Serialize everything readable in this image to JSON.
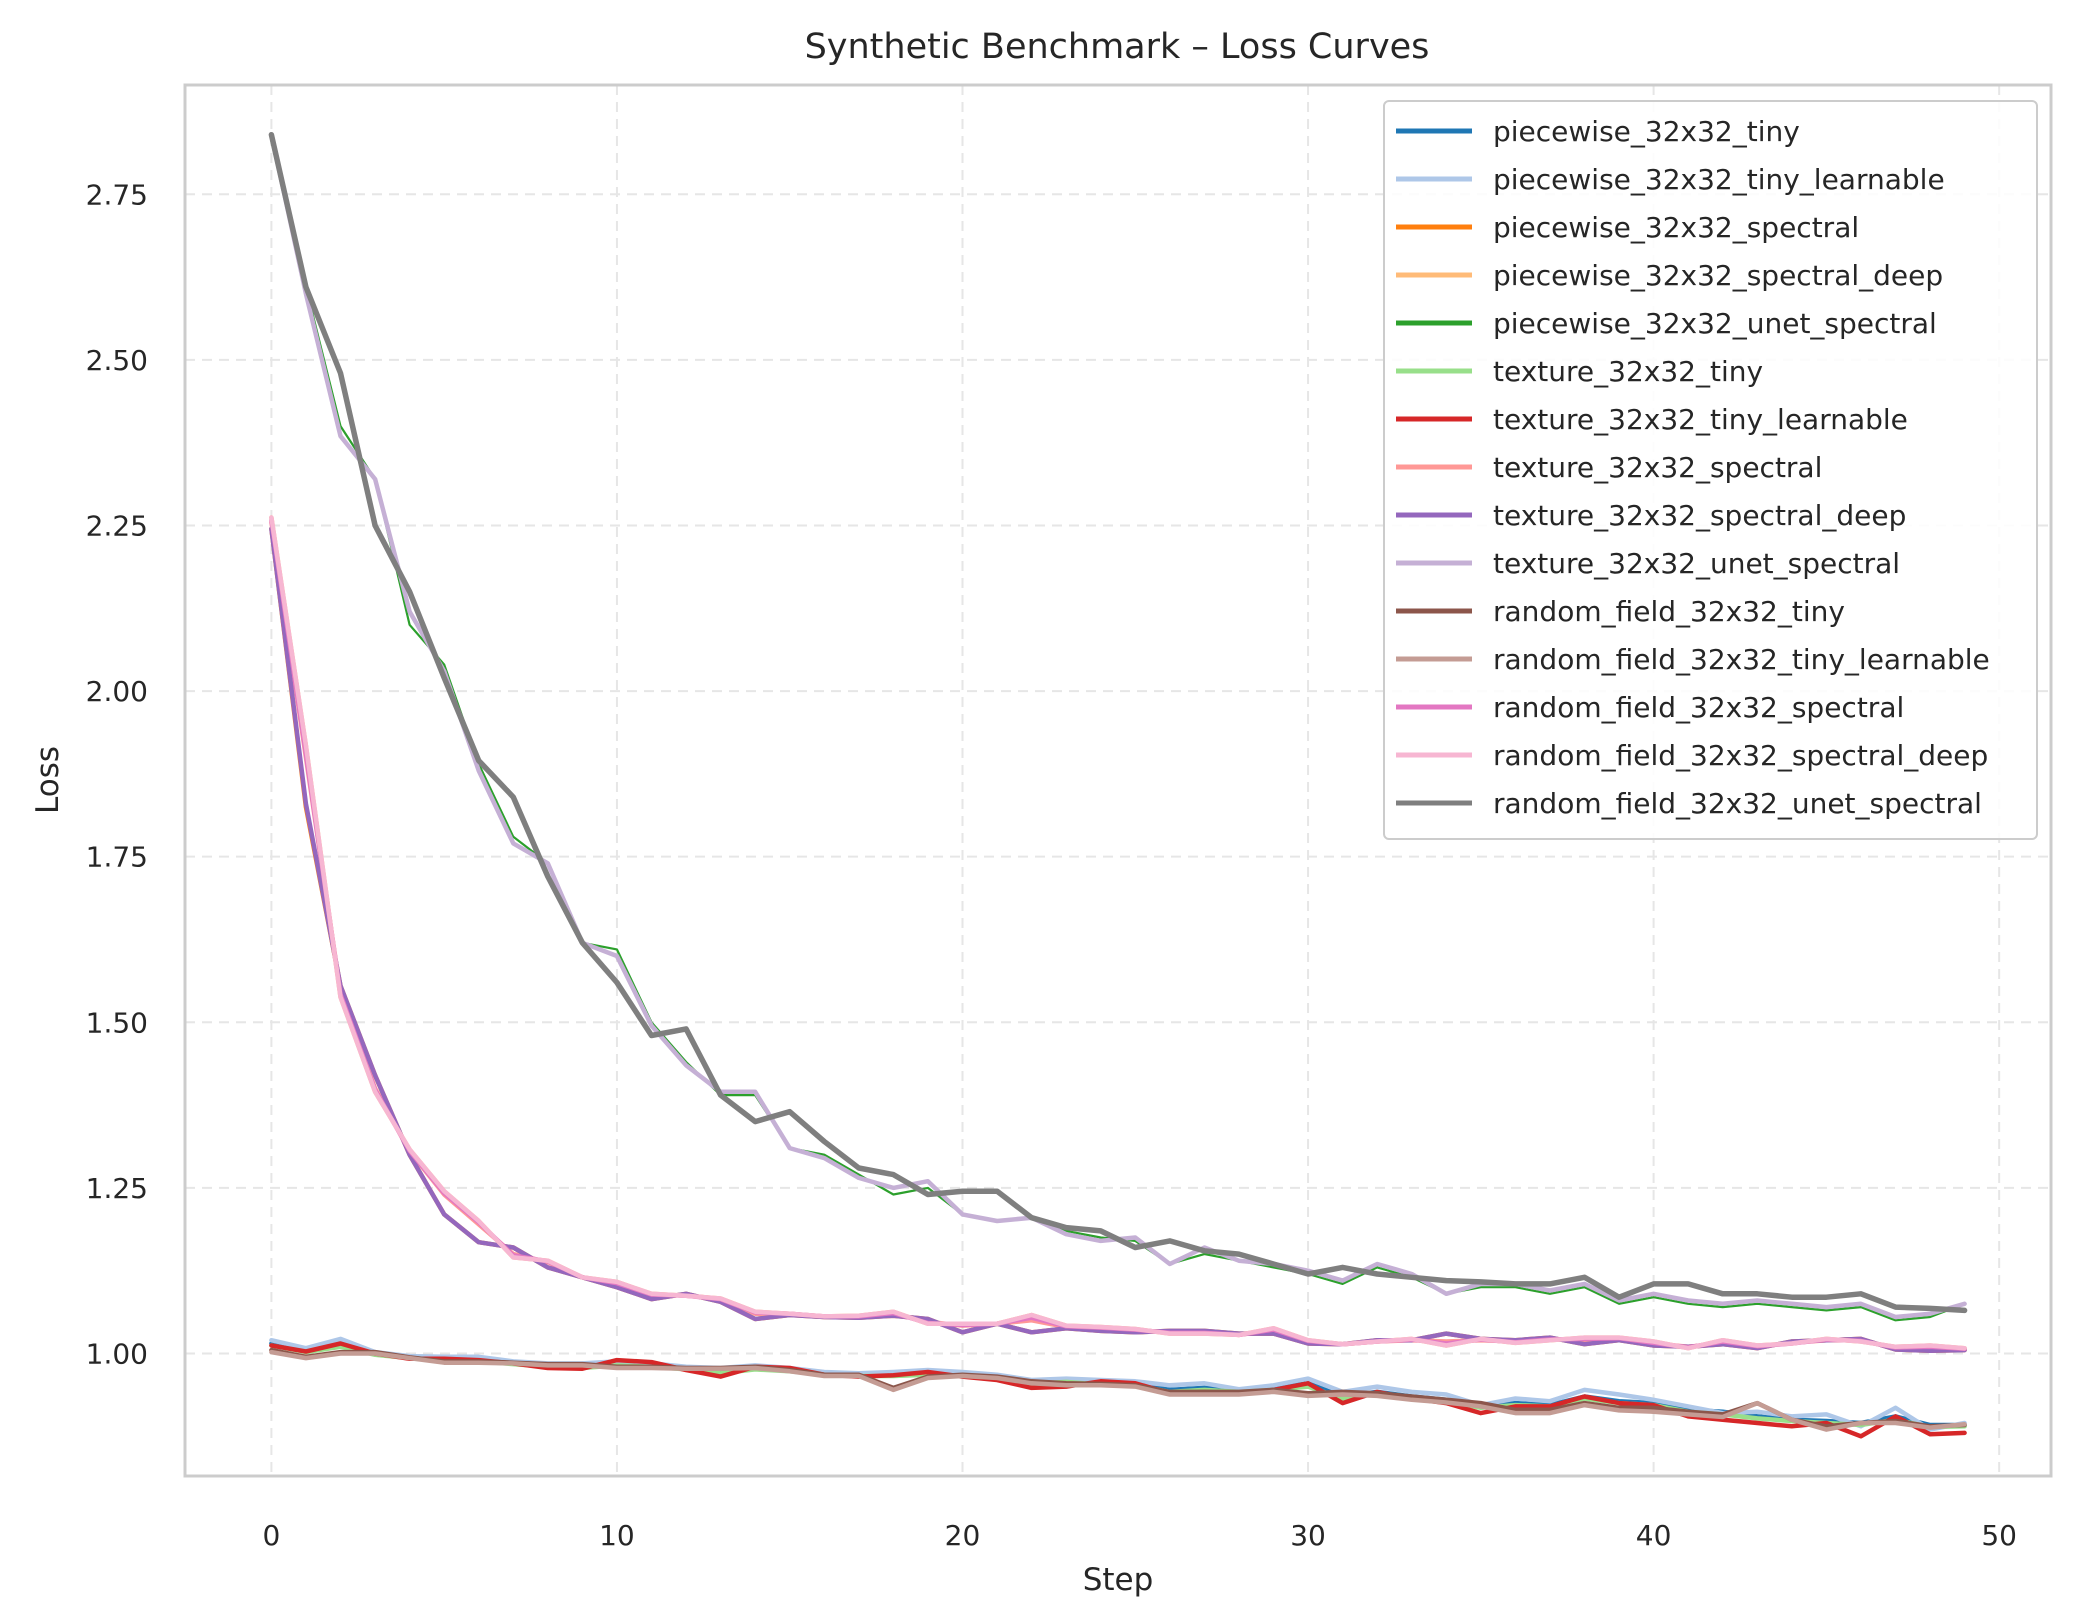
{
  "chart_data": {
    "type": "line",
    "title": "Synthetic Benchmark – Loss Curves",
    "xlabel": "Step",
    "ylabel": "Loss",
    "xlim": [
      -2.5,
      51.5
    ],
    "ylim": [
      0.815,
      2.915
    ],
    "xticks": [
      0,
      10,
      20,
      30,
      40,
      50
    ],
    "yticks": [
      1.0,
      1.25,
      1.5,
      1.75,
      2.0,
      2.25,
      2.5,
      2.75
    ],
    "xtick_labels": [
      "0",
      "10",
      "20",
      "30",
      "40",
      "50"
    ],
    "ytick_labels": [
      "1.00",
      "1.25",
      "1.50",
      "1.75",
      "2.00",
      "2.25",
      "2.50",
      "2.75"
    ],
    "grid": true,
    "legend_position": "top-right",
    "series": [
      {
        "name": "piecewise_32x32_tiny",
        "color": "#1f77b4",
        "width": 4.5,
        "values": [
          1.015,
          1.005,
          1.015,
          1.0,
          0.995,
          0.993,
          0.99,
          0.985,
          0.982,
          0.98,
          0.985,
          0.982,
          0.978,
          0.972,
          0.978,
          0.975,
          0.97,
          0.968,
          0.968,
          0.97,
          0.968,
          0.965,
          0.958,
          0.96,
          0.956,
          0.955,
          0.945,
          0.948,
          0.945,
          0.948,
          0.955,
          0.935,
          0.942,
          0.935,
          0.93,
          0.92,
          0.925,
          0.922,
          0.935,
          0.928,
          0.925,
          0.915,
          0.912,
          0.905,
          0.9,
          0.898,
          0.895,
          0.905,
          0.892,
          0.892
        ]
      },
      {
        "name": "piecewise_32x32_tiny_learnable",
        "color": "#aec7e8",
        "width": 4.5,
        "values": [
          1.02,
          1.008,
          1.022,
          1.002,
          0.996,
          0.995,
          0.995,
          0.988,
          0.985,
          0.985,
          0.988,
          0.985,
          0.98,
          0.978,
          0.982,
          0.978,
          0.972,
          0.97,
          0.972,
          0.975,
          0.972,
          0.968,
          0.96,
          0.962,
          0.96,
          0.958,
          0.952,
          0.955,
          0.946,
          0.952,
          0.962,
          0.942,
          0.95,
          0.942,
          0.938,
          0.922,
          0.932,
          0.928,
          0.945,
          0.938,
          0.93,
          0.92,
          0.91,
          0.912,
          0.905,
          0.908,
          0.89,
          0.918,
          0.885,
          0.895
        ]
      },
      {
        "name": "piecewise_32x32_spectral",
        "color": "#ff7f0e",
        "width": 4.5,
        "values": [
          2.245,
          1.825,
          1.555,
          1.42,
          1.3,
          1.21,
          1.168,
          1.16,
          1.13,
          1.115,
          1.1,
          1.082,
          1.09,
          1.078,
          1.052,
          1.058,
          1.055,
          1.054,
          1.057,
          1.052,
          1.032,
          1.045,
          1.032,
          1.038,
          1.034,
          1.032,
          1.034,
          1.034,
          1.03,
          1.03,
          1.015,
          1.014,
          1.02,
          1.02,
          1.03,
          1.022,
          1.02,
          1.024,
          1.014,
          1.02,
          1.012,
          1.01,
          1.014,
          1.008,
          1.018,
          1.02,
          1.022,
          1.006,
          1.004,
          1.005
        ]
      },
      {
        "name": "piecewise_32x32_spectral_deep",
        "color": "#ffbb78",
        "width": 4.5,
        "values": [
          2.262,
          1.918,
          1.538,
          1.395,
          1.308,
          1.245,
          1.2,
          1.145,
          1.14,
          1.115,
          1.108,
          1.09,
          1.087,
          1.083,
          1.063,
          1.06,
          1.056,
          1.057,
          1.063,
          1.045,
          1.045,
          1.045,
          1.058,
          1.042,
          1.04,
          1.037,
          1.03,
          1.03,
          1.028,
          1.038,
          1.02,
          1.014,
          1.018,
          1.022,
          1.012,
          1.022,
          1.016,
          1.02,
          1.024,
          1.024,
          1.018,
          1.008,
          1.02,
          1.012,
          1.015,
          1.022,
          1.018,
          1.01,
          1.012,
          1.008
        ]
      },
      {
        "name": "piecewise_32x32_unet_spectral",
        "color": "#2ca02c",
        "width": 2.2,
        "values": [
          2.83,
          2.61,
          2.4,
          2.32,
          2.1,
          2.04,
          1.89,
          1.78,
          1.74,
          1.62,
          1.61,
          1.5,
          1.44,
          1.39,
          1.39,
          1.31,
          1.3,
          1.27,
          1.24,
          1.25,
          1.21,
          1.2,
          1.205,
          1.185,
          1.175,
          1.17,
          1.135,
          1.15,
          1.14,
          1.13,
          1.12,
          1.105,
          1.13,
          1.115,
          1.09,
          1.1,
          1.1,
          1.09,
          1.1,
          1.075,
          1.085,
          1.075,
          1.07,
          1.075,
          1.07,
          1.065,
          1.07,
          1.05,
          1.055,
          1.075
        ]
      },
      {
        "name": "texture_32x32_tiny",
        "color": "#98df8a",
        "width": 4.5,
        "values": [
          1.012,
          1.002,
          1.01,
          0.998,
          0.993,
          0.99,
          0.988,
          0.984,
          0.98,
          0.978,
          0.982,
          0.98,
          0.976,
          0.97,
          0.976,
          0.973,
          0.968,
          0.966,
          0.966,
          0.968,
          0.966,
          0.962,
          0.954,
          0.957,
          0.953,
          0.952,
          0.942,
          0.945,
          0.942,
          0.945,
          0.95,
          0.932,
          0.94,
          0.932,
          0.927,
          0.918,
          0.922,
          0.92,
          0.932,
          0.925,
          0.922,
          0.912,
          0.908,
          0.902,
          0.898,
          0.895,
          0.892,
          0.9,
          0.889,
          0.89
        ]
      },
      {
        "name": "texture_32x32_tiny_learnable",
        "color": "#d62728",
        "width": 4.5,
        "values": [
          1.012,
          1.003,
          1.015,
          1.0,
          0.992,
          0.992,
          0.99,
          0.985,
          0.978,
          0.977,
          0.99,
          0.987,
          0.975,
          0.965,
          0.98,
          0.978,
          0.968,
          0.965,
          0.967,
          0.972,
          0.965,
          0.96,
          0.948,
          0.95,
          0.958,
          0.955,
          0.94,
          0.942,
          0.94,
          0.945,
          0.955,
          0.925,
          0.942,
          0.932,
          0.925,
          0.91,
          0.92,
          0.92,
          0.935,
          0.925,
          0.922,
          0.905,
          0.9,
          0.895,
          0.89,
          0.895,
          0.875,
          0.905,
          0.878,
          0.88
        ]
      },
      {
        "name": "texture_32x32_spectral",
        "color": "#ff9896",
        "width": 4.5,
        "values": [
          2.255,
          1.9,
          1.545,
          1.4,
          1.305,
          1.24,
          1.195,
          1.15,
          1.138,
          1.115,
          1.105,
          1.088,
          1.088,
          1.082,
          1.06,
          1.06,
          1.055,
          1.056,
          1.06,
          1.048,
          1.042,
          1.045,
          1.05,
          1.04,
          1.038,
          1.035,
          1.032,
          1.032,
          1.028,
          1.035,
          1.018,
          1.014,
          1.018,
          1.02,
          1.018,
          1.02,
          1.018,
          1.022,
          1.02,
          1.022,
          1.015,
          1.01,
          1.016,
          1.01,
          1.016,
          1.02,
          1.02,
          1.008,
          1.008,
          1.006
        ]
      },
      {
        "name": "texture_32x32_spectral_deep",
        "color": "#9467bd",
        "width": 4.5,
        "values": [
          2.245,
          1.83,
          1.555,
          1.42,
          1.3,
          1.21,
          1.168,
          1.16,
          1.13,
          1.115,
          1.1,
          1.082,
          1.09,
          1.078,
          1.052,
          1.058,
          1.055,
          1.054,
          1.057,
          1.052,
          1.032,
          1.045,
          1.032,
          1.038,
          1.034,
          1.032,
          1.034,
          1.034,
          1.03,
          1.03,
          1.015,
          1.014,
          1.02,
          1.02,
          1.03,
          1.022,
          1.02,
          1.024,
          1.014,
          1.02,
          1.012,
          1.01,
          1.014,
          1.008,
          1.018,
          1.02,
          1.022,
          1.006,
          1.004,
          1.005
        ]
      },
      {
        "name": "texture_32x32_unet_spectral",
        "color": "#c5b0d5",
        "width": 4.5,
        "values": [
          2.84,
          2.6,
          2.385,
          2.32,
          2.12,
          2.03,
          1.88,
          1.77,
          1.74,
          1.62,
          1.6,
          1.495,
          1.435,
          1.395,
          1.395,
          1.31,
          1.295,
          1.265,
          1.25,
          1.26,
          1.21,
          1.2,
          1.205,
          1.18,
          1.17,
          1.175,
          1.135,
          1.16,
          1.14,
          1.135,
          1.125,
          1.11,
          1.135,
          1.12,
          1.09,
          1.105,
          1.105,
          1.095,
          1.105,
          1.08,
          1.09,
          1.08,
          1.075,
          1.08,
          1.075,
          1.07,
          1.075,
          1.055,
          1.06,
          1.075
        ]
      },
      {
        "name": "random_field_32x32_tiny",
        "color": "#8c564b",
        "width": 4.5,
        "values": [
          1.005,
          0.995,
          1.002,
          1.002,
          0.994,
          0.988,
          0.988,
          0.986,
          0.984,
          0.984,
          0.98,
          0.98,
          0.978,
          0.978,
          0.98,
          0.975,
          0.968,
          0.968,
          0.948,
          0.965,
          0.968,
          0.965,
          0.958,
          0.955,
          0.954,
          0.952,
          0.942,
          0.942,
          0.942,
          0.945,
          0.94,
          0.942,
          0.94,
          0.935,
          0.93,
          0.925,
          0.915,
          0.915,
          0.925,
          0.918,
          0.918,
          0.912,
          0.908,
          0.925,
          0.9,
          0.89,
          0.895,
          0.898,
          0.89,
          0.892
        ]
      },
      {
        "name": "random_field_32x32_tiny_learnable",
        "color": "#c49c94",
        "width": 4.5,
        "values": [
          1.002,
          0.993,
          1.0,
          1.0,
          0.993,
          0.986,
          0.986,
          0.985,
          0.982,
          0.982,
          0.978,
          0.978,
          0.977,
          0.977,
          0.978,
          0.973,
          0.966,
          0.966,
          0.945,
          0.963,
          0.966,
          0.963,
          0.955,
          0.952,
          0.952,
          0.95,
          0.938,
          0.938,
          0.938,
          0.942,
          0.936,
          0.938,
          0.936,
          0.93,
          0.926,
          0.92,
          0.91,
          0.91,
          0.922,
          0.914,
          0.912,
          0.908,
          0.904,
          0.925,
          0.9,
          0.885,
          0.895,
          0.895,
          0.888,
          0.893
        ]
      },
      {
        "name": "random_field_32x32_spectral",
        "color": "#e377c2",
        "width": 4.5,
        "values": [
          2.258,
          1.905,
          1.542,
          1.398,
          1.306,
          1.242,
          1.198,
          1.148,
          1.139,
          1.115,
          1.106,
          1.089,
          1.087,
          1.082,
          1.062,
          1.06,
          1.056,
          1.056,
          1.061,
          1.046,
          1.043,
          1.045,
          1.054,
          1.041,
          1.039,
          1.036,
          1.031,
          1.031,
          1.028,
          1.036,
          1.019,
          1.014,
          1.018,
          1.021,
          1.015,
          1.021,
          1.017,
          1.021,
          1.022,
          1.023,
          1.016,
          1.009,
          1.018,
          1.011,
          1.015,
          1.021,
          1.019,
          1.009,
          1.01,
          1.007
        ]
      },
      {
        "name": "random_field_32x32_spectral_deep",
        "color": "#f7b6d2",
        "width": 4.5,
        "values": [
          2.262,
          1.918,
          1.538,
          1.395,
          1.308,
          1.245,
          1.2,
          1.145,
          1.14,
          1.115,
          1.108,
          1.09,
          1.087,
          1.083,
          1.063,
          1.06,
          1.056,
          1.057,
          1.063,
          1.045,
          1.045,
          1.045,
          1.058,
          1.042,
          1.04,
          1.037,
          1.03,
          1.03,
          1.028,
          1.038,
          1.02,
          1.014,
          1.018,
          1.022,
          1.012,
          1.022,
          1.016,
          1.02,
          1.024,
          1.024,
          1.018,
          1.008,
          1.02,
          1.012,
          1.015,
          1.022,
          1.018,
          1.01,
          1.012,
          1.008
        ]
      },
      {
        "name": "random_field_32x32_unet_spectral",
        "color": "#7f7f7f",
        "width": 5.5,
        "values": [
          2.84,
          2.61,
          2.48,
          2.25,
          2.15,
          2.02,
          1.895,
          1.84,
          1.72,
          1.62,
          1.56,
          1.48,
          1.49,
          1.39,
          1.35,
          1.365,
          1.32,
          1.28,
          1.27,
          1.24,
          1.245,
          1.245,
          1.205,
          1.19,
          1.185,
          1.16,
          1.17,
          1.155,
          1.15,
          1.135,
          1.12,
          1.13,
          1.12,
          1.115,
          1.11,
          1.108,
          1.105,
          1.105,
          1.115,
          1.085,
          1.105,
          1.105,
          1.09,
          1.09,
          1.085,
          1.085,
          1.09,
          1.07,
          1.068,
          1.065
        ]
      }
    ]
  }
}
